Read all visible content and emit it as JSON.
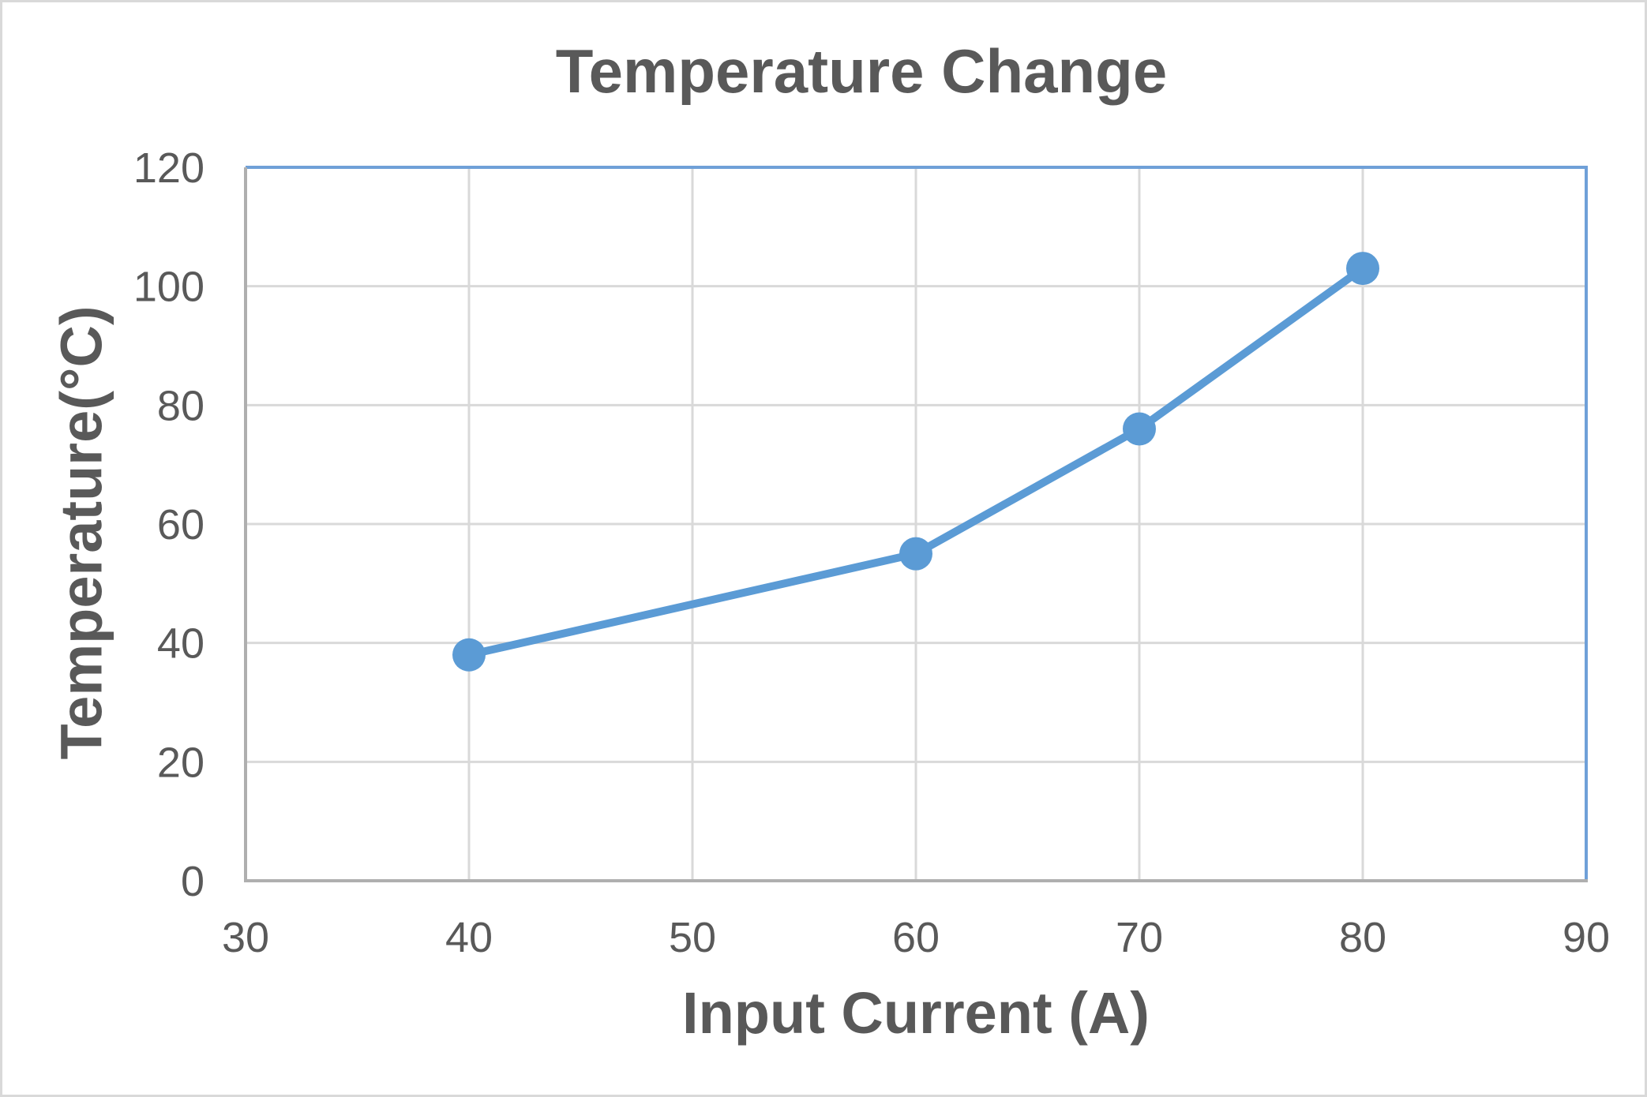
{
  "chart_data": {
    "type": "line",
    "title": "Temperature Change",
    "xlabel": "Input Current (A)",
    "ylabel": "Temperature(°C)",
    "series": [
      {
        "name": "Temperature",
        "x": [
          40,
          60,
          70,
          80
        ],
        "y": [
          38,
          55,
          76,
          103
        ]
      }
    ],
    "xlim": [
      30,
      90
    ],
    "ylim": [
      0,
      120
    ],
    "x_ticks": [
      30,
      40,
      50,
      60,
      70,
      80,
      90
    ],
    "y_ticks": [
      0,
      20,
      40,
      60,
      80,
      100,
      120
    ],
    "grid": true,
    "legend_position": "none",
    "marker": "circle"
  },
  "colors": {
    "title_text": "#595959",
    "tick_text": "#595959",
    "series_line": "#5B9BD5",
    "marker_fill": "#5B9BD5",
    "plot_border_blue": "#6FA0D8",
    "axis_line_gray": "#AFAFAF",
    "gridline": "#D9D9D9",
    "page_border": "#D9D9D9",
    "background": "#FFFFFF"
  }
}
